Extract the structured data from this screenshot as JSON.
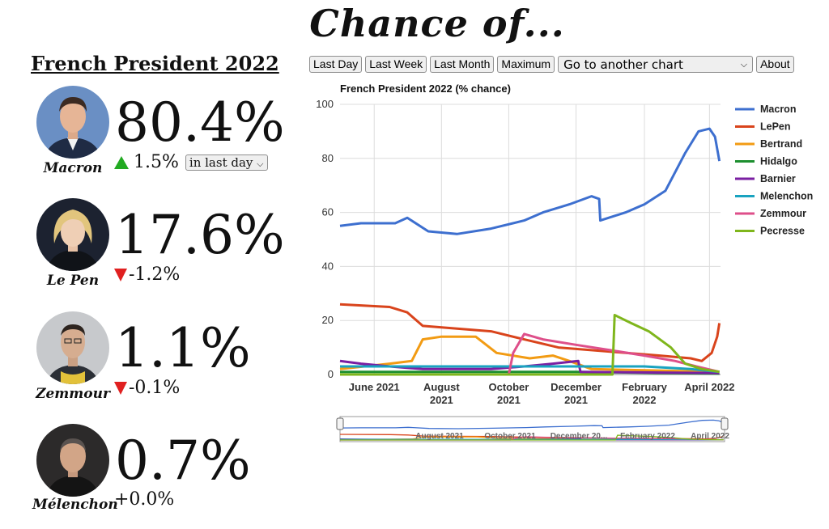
{
  "header": {
    "title": "Chance of...",
    "subtitle": "French President 2022"
  },
  "toolbar": {
    "buttons": [
      "Last Day",
      "Last Week",
      "Last Month",
      "Maximum"
    ],
    "chart_select": "Go to another chart",
    "about": "About"
  },
  "candidates": [
    {
      "name": "Macron",
      "pct": "80.4%",
      "change": "1.5%",
      "direction": "up",
      "period": "in last day"
    },
    {
      "name": "Le Pen",
      "pct": "17.6%",
      "change": "-1.2%",
      "direction": "down"
    },
    {
      "name": "Zemmour",
      "pct": "1.1%",
      "change": "-0.1%",
      "direction": "down"
    },
    {
      "name": "Mélenchon",
      "pct": "0.7%",
      "change": "+0.0%",
      "direction": "none"
    }
  ],
  "chart_data": {
    "type": "line",
    "title": "French President 2022 (% chance)",
    "xlabel": "",
    "ylabel": "",
    "ylim": [
      0,
      100
    ],
    "yticks": [
      0,
      20,
      40,
      60,
      80,
      100
    ],
    "xticks": [
      {
        "x": "2021-06-01",
        "label": "June 2021"
      },
      {
        "x": "2021-08-01",
        "label": "August 2021"
      },
      {
        "x": "2021-10-01",
        "label": "October 2021"
      },
      {
        "x": "2021-12-01",
        "label": "December 2021"
      },
      {
        "x": "2022-02-01",
        "label": "February 2022"
      },
      {
        "x": "2022-04-01",
        "label": "April 2022"
      }
    ],
    "xlim": [
      "2021-05-01",
      "2022-04-11"
    ],
    "grid": true,
    "legend_position": "right",
    "series": [
      {
        "name": "Macron",
        "color": "#3d6fcf",
        "points": [
          [
            "2021-05-01",
            55
          ],
          [
            "2021-05-20",
            56
          ],
          [
            "2021-06-20",
            56
          ],
          [
            "2021-07-01",
            58
          ],
          [
            "2021-07-20",
            53
          ],
          [
            "2021-08-15",
            52
          ],
          [
            "2021-09-15",
            54
          ],
          [
            "2021-10-15",
            57
          ],
          [
            "2021-11-01",
            60
          ],
          [
            "2021-11-25",
            63
          ],
          [
            "2021-12-15",
            66
          ],
          [
            "2021-12-22",
            65
          ],
          [
            "2021-12-23",
            57
          ],
          [
            "2022-01-15",
            60
          ],
          [
            "2022-02-01",
            63
          ],
          [
            "2022-02-20",
            68
          ],
          [
            "2022-03-10",
            82
          ],
          [
            "2022-03-22",
            90
          ],
          [
            "2022-04-01",
            91
          ],
          [
            "2022-04-06",
            88
          ],
          [
            "2022-04-10",
            79
          ]
        ]
      },
      {
        "name": "LePen",
        "color": "#d9441c",
        "points": [
          [
            "2021-05-01",
            26
          ],
          [
            "2021-06-15",
            25
          ],
          [
            "2021-07-01",
            23
          ],
          [
            "2021-07-15",
            18
          ],
          [
            "2021-08-15",
            17
          ],
          [
            "2021-09-15",
            16
          ],
          [
            "2021-10-15",
            13
          ],
          [
            "2021-11-15",
            10
          ],
          [
            "2021-12-15",
            9
          ],
          [
            "2022-01-15",
            8
          ],
          [
            "2022-02-15",
            7
          ],
          [
            "2022-03-15",
            6
          ],
          [
            "2022-03-25",
            5
          ],
          [
            "2022-04-03",
            8
          ],
          [
            "2022-04-08",
            14
          ],
          [
            "2022-04-10",
            19
          ]
        ]
      },
      {
        "name": "Bertrand",
        "color": "#f29b13",
        "points": [
          [
            "2021-05-01",
            2
          ],
          [
            "2021-06-15",
            4
          ],
          [
            "2021-07-05",
            5
          ],
          [
            "2021-07-15",
            13
          ],
          [
            "2021-08-01",
            14
          ],
          [
            "2021-09-01",
            14
          ],
          [
            "2021-09-20",
            8
          ],
          [
            "2021-10-20",
            6
          ],
          [
            "2021-11-10",
            7
          ],
          [
            "2021-11-25",
            5
          ],
          [
            "2021-12-15",
            2
          ],
          [
            "2022-04-10",
            1
          ]
        ]
      },
      {
        "name": "Hidalgo",
        "color": "#1d8f2f",
        "points": [
          [
            "2021-05-01",
            1
          ],
          [
            "2021-08-01",
            1
          ],
          [
            "2021-12-01",
            1
          ],
          [
            "2022-04-10",
            0.3
          ]
        ]
      },
      {
        "name": "Barnier",
        "color": "#7a1fa2",
        "points": [
          [
            "2021-05-01",
            5
          ],
          [
            "2021-05-20",
            4
          ],
          [
            "2021-06-15",
            3
          ],
          [
            "2021-07-15",
            2
          ],
          [
            "2021-09-15",
            2
          ],
          [
            "2021-10-15",
            3
          ],
          [
            "2021-11-10",
            4
          ],
          [
            "2021-12-03",
            5
          ],
          [
            "2021-12-05",
            1
          ],
          [
            "2022-04-10",
            0.5
          ]
        ]
      },
      {
        "name": "Melenchon",
        "color": "#19a3c0",
        "points": [
          [
            "2021-05-01",
            3
          ],
          [
            "2021-08-01",
            3
          ],
          [
            "2021-11-01",
            3
          ],
          [
            "2022-02-01",
            3
          ],
          [
            "2022-03-15",
            2
          ],
          [
            "2022-04-10",
            1
          ]
        ]
      },
      {
        "name": "Zemmour",
        "color": "#de4f8a",
        "points": [
          [
            "2021-05-01",
            0
          ],
          [
            "2021-10-01",
            0
          ],
          [
            "2021-10-05",
            8
          ],
          [
            "2021-10-15",
            15
          ],
          [
            "2021-11-01",
            13
          ],
          [
            "2021-12-01",
            11
          ],
          [
            "2022-01-01",
            9
          ],
          [
            "2022-02-01",
            7
          ],
          [
            "2022-03-01",
            5
          ],
          [
            "2022-03-20",
            3
          ],
          [
            "2022-04-10",
            1
          ]
        ]
      },
      {
        "name": "Pecresse",
        "color": "#7fb61c",
        "points": [
          [
            "2021-05-01",
            0
          ],
          [
            "2022-01-03",
            0
          ],
          [
            "2022-01-05",
            22
          ],
          [
            "2022-01-20",
            19
          ],
          [
            "2022-02-05",
            16
          ],
          [
            "2022-02-25",
            10
          ],
          [
            "2022-03-10",
            4
          ],
          [
            "2022-03-25",
            2
          ],
          [
            "2022-04-10",
            1
          ]
        ]
      }
    ],
    "navigator": {
      "labels": [
        "August 2021",
        "October 2021",
        "December 20...",
        "February 2022",
        "April 2022"
      ]
    }
  }
}
